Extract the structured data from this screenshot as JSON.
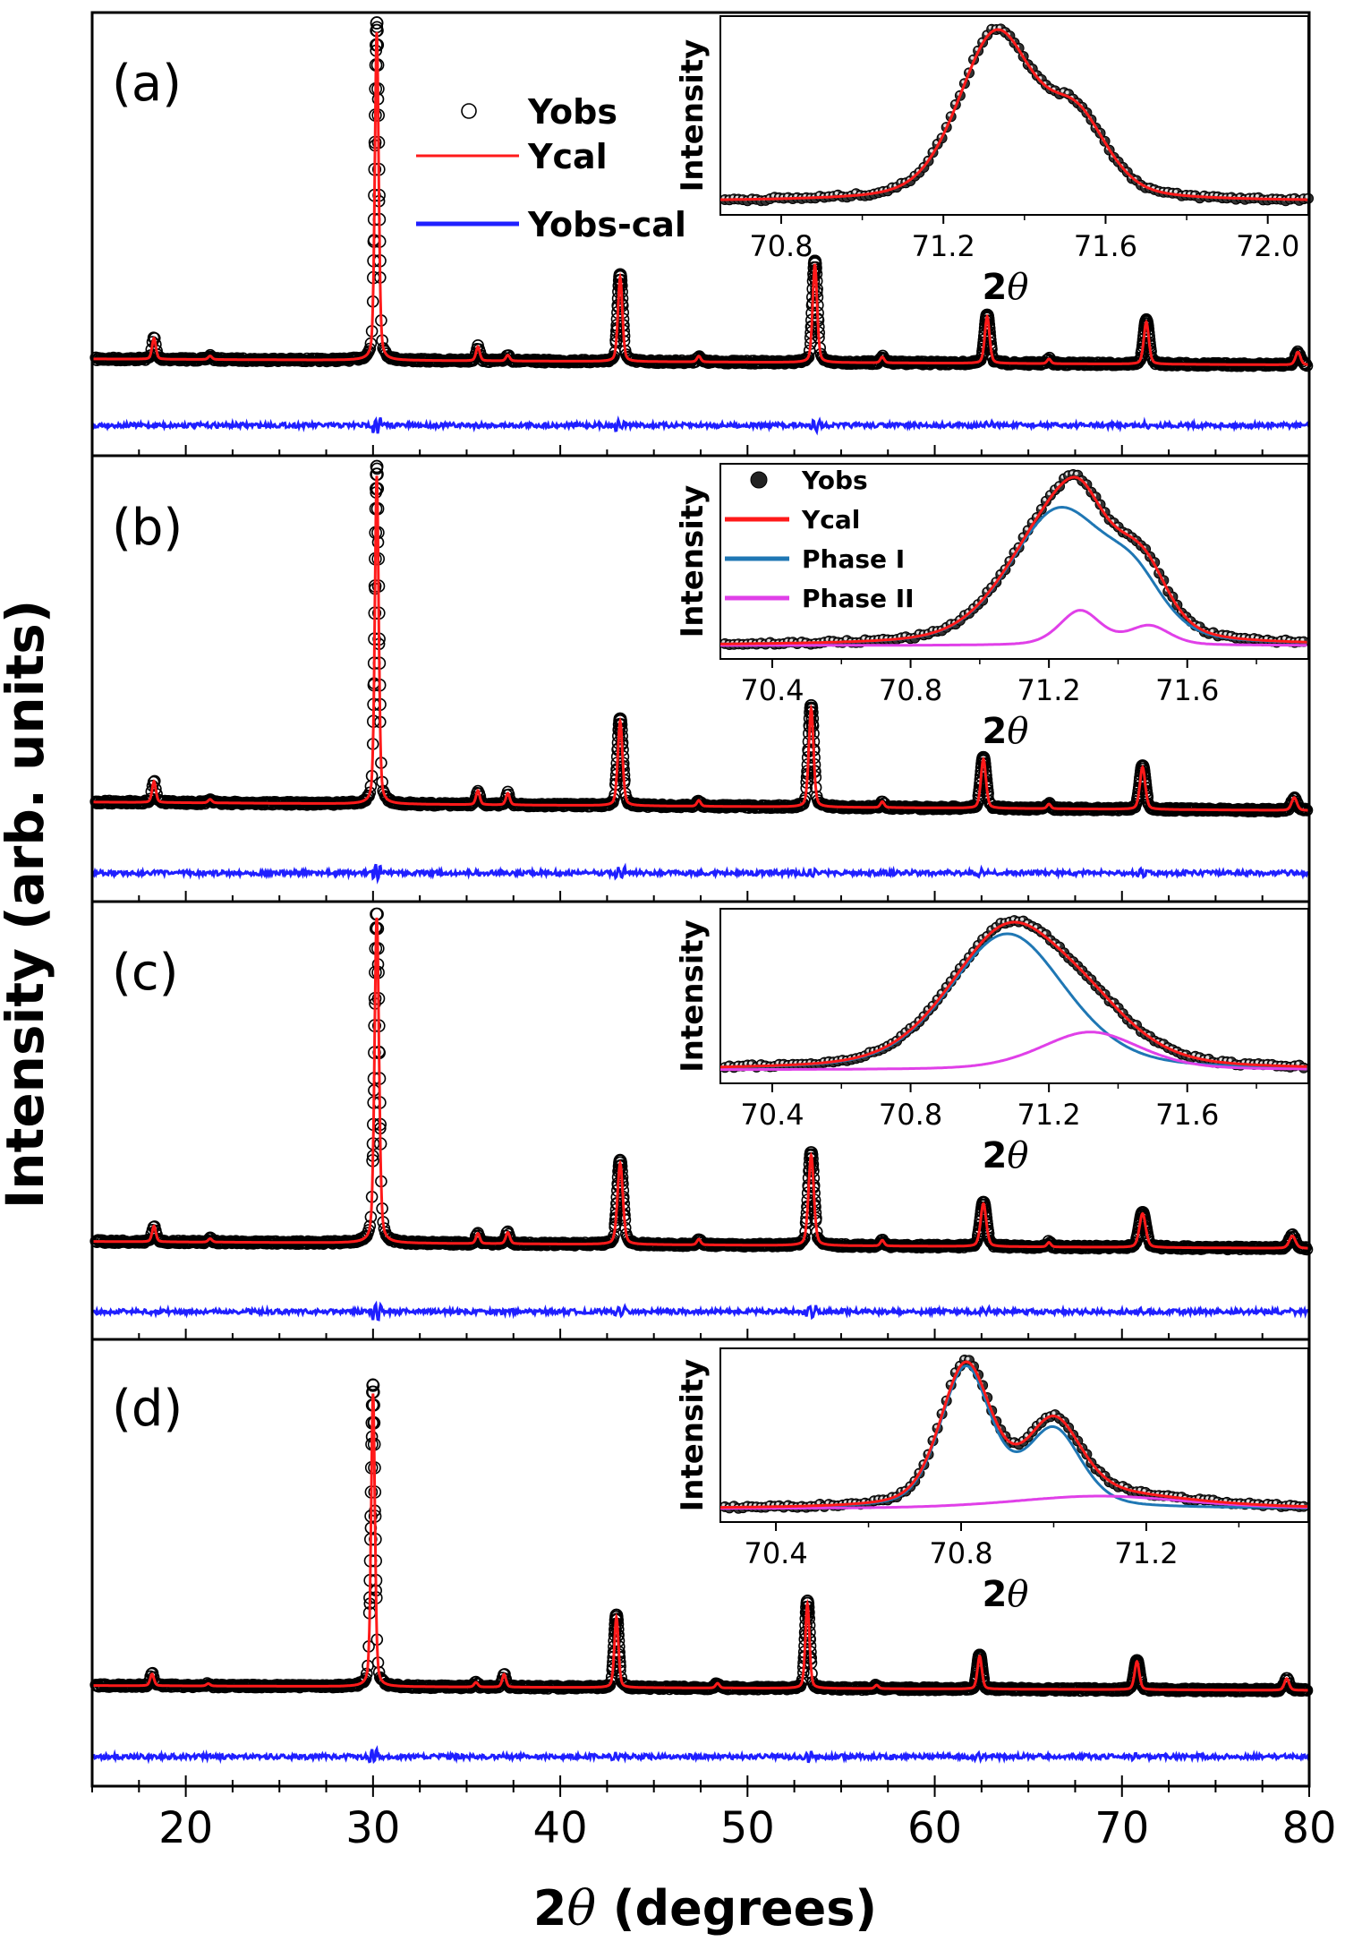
{
  "chart_data": {
    "type": "line",
    "ylabel": "Intensity (arb. units)",
    "xlabel_parts": [
      "2",
      "θ",
      " (degrees)"
    ],
    "xlim": [
      15,
      80
    ],
    "xticks": [
      20,
      30,
      40,
      50,
      60,
      70,
      80
    ],
    "colors": {
      "obs": "#000000",
      "cal": "#ff1a1a",
      "diff": "#1f1fff",
      "phase1": "#1f77b4",
      "phase2": "#e040e8"
    },
    "panels": [
      {
        "label": "(a)",
        "background": 1.05,
        "background_slope": 0.25,
        "peaks": [
          {
            "x": 18.3,
            "h": 0.9,
            "w": 0.12
          },
          {
            "x": 21.3,
            "h": 0.15,
            "w": 0.12
          },
          {
            "x": 30.2,
            "h": 14.0,
            "w": 0.12
          },
          {
            "x": 35.6,
            "h": 0.6,
            "w": 0.12
          },
          {
            "x": 37.2,
            "h": 0.25,
            "w": 0.12
          },
          {
            "x": 43.2,
            "h": 3.6,
            "w": 0.14
          },
          {
            "x": 47.4,
            "h": 0.25,
            "w": 0.12
          },
          {
            "x": 53.6,
            "h": 4.2,
            "w": 0.14
          },
          {
            "x": 57.2,
            "h": 0.25,
            "w": 0.12
          },
          {
            "x": 62.8,
            "h": 2.0,
            "w": 0.15
          },
          {
            "x": 66.1,
            "h": 0.2,
            "w": 0.12
          },
          {
            "x": 71.3,
            "h": 1.8,
            "w": 0.16
          },
          {
            "x": 79.4,
            "h": 0.55,
            "w": 0.16
          }
        ],
        "legend": [
          "Yobs",
          "Ycal",
          "Yobs-cal"
        ],
        "inset": {
          "xlabel_parts": [
            "2",
            "θ"
          ],
          "ylabel": "Intensity",
          "xlim": [
            70.65,
            72.1
          ],
          "xticks": [
            70.8,
            71.2,
            71.6,
            72.0
          ],
          "tick_labels": [
            "70.8",
            "71.2",
            "71.6",
            "72.0"
          ],
          "components": [
            {
              "role": "main",
              "peaks": [
                {
                  "x": 71.33,
                  "h": 1.0,
                  "w": 0.11
                },
                {
                  "x": 71.53,
                  "h": 0.45,
                  "w": 0.09
                }
              ]
            }
          ],
          "legend": []
        }
      },
      {
        "label": "(b)",
        "background": 1.1,
        "background_slope": 0.35,
        "peaks": [
          {
            "x": 18.3,
            "h": 0.9,
            "w": 0.12
          },
          {
            "x": 21.3,
            "h": 0.15,
            "w": 0.12
          },
          {
            "x": 30.2,
            "h": 14.0,
            "w": 0.12
          },
          {
            "x": 35.6,
            "h": 0.6,
            "w": 0.12
          },
          {
            "x": 37.2,
            "h": 0.5,
            "w": 0.12
          },
          {
            "x": 43.2,
            "h": 3.6,
            "w": 0.15
          },
          {
            "x": 47.4,
            "h": 0.25,
            "w": 0.12
          },
          {
            "x": 53.4,
            "h": 4.2,
            "w": 0.15
          },
          {
            "x": 57.2,
            "h": 0.25,
            "w": 0.12
          },
          {
            "x": 62.6,
            "h": 2.1,
            "w": 0.16
          },
          {
            "x": 66.1,
            "h": 0.2,
            "w": 0.12
          },
          {
            "x": 71.1,
            "h": 1.8,
            "w": 0.17
          },
          {
            "x": 79.2,
            "h": 0.55,
            "w": 0.17
          }
        ],
        "legend": [],
        "inset": {
          "xlabel_parts": [
            "2",
            "θ"
          ],
          "ylabel": "Intensity",
          "xlim": [
            70.25,
            71.95
          ],
          "xticks": [
            70.4,
            70.8,
            71.2,
            71.6
          ],
          "tick_labels": [
            "70.4",
            "70.8",
            "71.2",
            "71.6"
          ],
          "components": [
            {
              "role": "phase1",
              "peaks": [
                {
                  "x": 71.23,
                  "h": 0.78,
                  "w": 0.17
                },
                {
                  "x": 71.45,
                  "h": 0.25,
                  "w": 0.1
                }
              ]
            },
            {
              "role": "phase2",
              "peaks": [
                {
                  "x": 71.29,
                  "h": 0.2,
                  "w": 0.07
                },
                {
                  "x": 71.49,
                  "h": 0.11,
                  "w": 0.07
                }
              ]
            }
          ],
          "legend": [
            "Yobs",
            "Ycal",
            "Phase I",
            "Phase II"
          ]
        }
      },
      {
        "label": "(c)",
        "background": 1.1,
        "background_slope": 0.3,
        "peaks": [
          {
            "x": 18.3,
            "h": 0.7,
            "w": 0.12
          },
          {
            "x": 21.3,
            "h": 0.15,
            "w": 0.12
          },
          {
            "x": 30.2,
            "h": 14.5,
            "w": 0.14
          },
          {
            "x": 35.6,
            "h": 0.45,
            "w": 0.12
          },
          {
            "x": 37.2,
            "h": 0.5,
            "w": 0.13
          },
          {
            "x": 43.2,
            "h": 3.6,
            "w": 0.17
          },
          {
            "x": 47.4,
            "h": 0.25,
            "w": 0.12
          },
          {
            "x": 53.4,
            "h": 4.0,
            "w": 0.17
          },
          {
            "x": 57.2,
            "h": 0.25,
            "w": 0.12
          },
          {
            "x": 62.6,
            "h": 1.9,
            "w": 0.18
          },
          {
            "x": 66.1,
            "h": 0.2,
            "w": 0.12
          },
          {
            "x": 71.1,
            "h": 1.5,
            "w": 0.2
          },
          {
            "x": 79.1,
            "h": 0.55,
            "w": 0.2
          }
        ],
        "legend": [],
        "inset": {
          "xlabel_parts": [
            "2",
            "θ"
          ],
          "ylabel": "Intensity",
          "xlim": [
            70.25,
            71.95
          ],
          "xticks": [
            70.4,
            70.8,
            71.2,
            71.6
          ],
          "tick_labels": [
            "70.4",
            "70.8",
            "71.2",
            "71.6"
          ],
          "components": [
            {
              "role": "phase1",
              "peaks": [
                {
                  "x": 71.08,
                  "h": 0.97,
                  "w": 0.2
                }
              ]
            },
            {
              "role": "phase2",
              "peaks": [
                {
                  "x": 71.32,
                  "h": 0.27,
                  "w": 0.17
                }
              ]
            }
          ],
          "legend": []
        }
      },
      {
        "label": "(d)",
        "background": 1.0,
        "background_slope": 0.2,
        "peaks": [
          {
            "x": 18.2,
            "h": 0.5,
            "w": 0.12
          },
          {
            "x": 21.2,
            "h": 0.1,
            "w": 0.12
          },
          {
            "x": 30.0,
            "h": 12.5,
            "w": 0.12
          },
          {
            "x": 35.5,
            "h": 0.2,
            "w": 0.12
          },
          {
            "x": 37.0,
            "h": 0.55,
            "w": 0.12
          },
          {
            "x": 43.0,
            "h": 3.0,
            "w": 0.13
          },
          {
            "x": 48.4,
            "h": 0.2,
            "w": 0.12
          },
          {
            "x": 53.2,
            "h": 3.6,
            "w": 0.13
          },
          {
            "x": 56.9,
            "h": 0.15,
            "w": 0.12
          },
          {
            "x": 62.4,
            "h": 1.4,
            "w": 0.14
          },
          {
            "x": 70.8,
            "h": 1.2,
            "w": 0.15
          },
          {
            "x": 78.8,
            "h": 0.5,
            "w": 0.15
          }
        ],
        "legend": [],
        "inset": {
          "xlabel_parts": [
            "2",
            "θ"
          ],
          "ylabel": "Intensity",
          "xlim": [
            70.28,
            71.55
          ],
          "xticks": [
            70.4,
            70.8,
            71.2
          ],
          "tick_labels": [
            "70.4",
            "70.8",
            "71.2"
          ],
          "components": [
            {
              "role": "phase1",
              "peaks": [
                {
                  "x": 70.81,
                  "h": 1.0,
                  "w": 0.065
                },
                {
                  "x": 71.0,
                  "h": 0.55,
                  "w": 0.07
                }
              ]
            },
            {
              "role": "phase2",
              "peaks": [
                {
                  "x": 71.1,
                  "h": 0.09,
                  "w": 0.22
                }
              ]
            }
          ],
          "legend": []
        }
      }
    ]
  }
}
